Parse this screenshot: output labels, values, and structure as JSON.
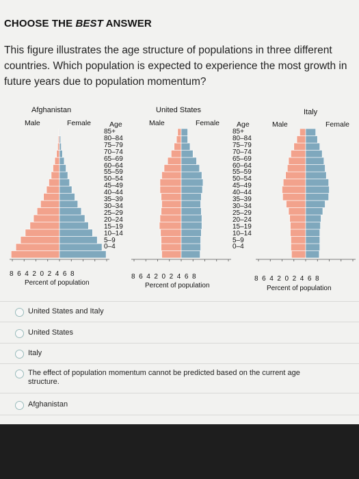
{
  "header": {
    "title_plain": "CHOOSE THE ",
    "title_italic": "BEST",
    "title_end": " ANSWER"
  },
  "question": "This figure illustrates the age structure of populations in three different countries. Which population is expected to experience the most growth in future years due to population momentum?",
  "figure": {
    "colors": {
      "male": "#f2a28c",
      "female": "#7fa8bd"
    },
    "age_header": "Age",
    "age_groups": [
      "85+",
      "80–84",
      "75–79",
      "70–74",
      "65–69",
      "60–64",
      "55–59",
      "50–54",
      "45–49",
      "40–44",
      "35–39",
      "30–34",
      "25–29",
      "20–24",
      "15–19",
      "10–14",
      "5–9",
      "0–4"
    ],
    "x_ticks": "8  6  4  2  0  2  4  6  8",
    "countries": [
      {
        "name": "Afghanistan",
        "male_label": "Male",
        "female_label": "Female",
        "x_label": "Percent of population"
      },
      {
        "name": "United States",
        "male_label": "Male",
        "female_label": "Female",
        "x_label": "Percent of population"
      },
      {
        "name": "Italy",
        "male_label": "Male",
        "female_label": "Female",
        "x_label": "Percent of population"
      }
    ]
  },
  "chart_data": [
    {
      "type": "bar",
      "title": "Afghanistan",
      "xlabel": "Percent of population",
      "categories": [
        "0–4",
        "5–9",
        "10–14",
        "15–19",
        "20–24",
        "25–29",
        "30–34",
        "35–39",
        "40–44",
        "45–49",
        "50–54",
        "55–59",
        "60–64",
        "65–69",
        "70–74",
        "75–79",
        "80–84",
        "85+"
      ],
      "series": [
        {
          "name": "Male",
          "values": [
            8.2,
            7.4,
            6.6,
            5.8,
            5.0,
            4.4,
            3.8,
            3.2,
            2.7,
            2.2,
            1.8,
            1.4,
            1.1,
            0.8,
            0.5,
            0.3,
            0.2,
            0.1
          ]
        },
        {
          "name": "Female",
          "values": [
            7.9,
            7.2,
            6.4,
            5.6,
            4.9,
            4.3,
            3.7,
            3.1,
            2.6,
            2.1,
            1.7,
            1.4,
            1.1,
            0.8,
            0.5,
            0.3,
            0.2,
            0.1
          ]
        }
      ],
      "xlim": [
        -8,
        8
      ]
    },
    {
      "type": "bar",
      "title": "United States",
      "xlabel": "Percent of population",
      "categories": [
        "0–4",
        "5–9",
        "10–14",
        "15–19",
        "20–24",
        "25–29",
        "30–34",
        "35–39",
        "40–44",
        "45–49",
        "50–54",
        "55–59",
        "60–64",
        "65–69",
        "70–74",
        "75–79",
        "80–84",
        "85+"
      ],
      "series": [
        {
          "name": "Male",
          "values": [
            3.3,
            3.4,
            3.4,
            3.5,
            3.7,
            3.6,
            3.4,
            3.3,
            3.4,
            3.6,
            3.6,
            3.3,
            2.9,
            2.3,
            1.7,
            1.2,
            0.8,
            0.6
          ]
        },
        {
          "name": "Female",
          "values": [
            3.2,
            3.3,
            3.3,
            3.4,
            3.5,
            3.5,
            3.4,
            3.3,
            3.4,
            3.6,
            3.7,
            3.5,
            3.1,
            2.6,
            2.0,
            1.5,
            1.1,
            1.1
          ]
        }
      ],
      "xlim": [
        -8,
        8
      ]
    },
    {
      "type": "bar",
      "title": "Italy",
      "xlabel": "Percent of population",
      "categories": [
        "0–4",
        "5–9",
        "10–14",
        "15–19",
        "20–24",
        "25–29",
        "30–34",
        "35–39",
        "40–44",
        "45–49",
        "50–54",
        "55–59",
        "60–64",
        "65–69",
        "70–74",
        "75–79",
        "80–84",
        "85+"
      ],
      "series": [
        {
          "name": "Male",
          "values": [
            2.4,
            2.5,
            2.5,
            2.6,
            2.6,
            2.7,
            2.9,
            3.3,
            3.9,
            4.0,
            3.8,
            3.4,
            3.1,
            2.9,
            2.5,
            2.0,
            1.5,
            1.0
          ]
        },
        {
          "name": "Female",
          "values": [
            2.3,
            2.4,
            2.4,
            2.4,
            2.5,
            2.6,
            2.9,
            3.3,
            3.9,
            4.0,
            3.9,
            3.5,
            3.3,
            3.1,
            2.8,
            2.4,
            2.0,
            1.7
          ]
        }
      ],
      "xlim": [
        -8,
        8
      ]
    }
  ],
  "options": [
    {
      "label": "United States and Italy"
    },
    {
      "label": "United States"
    },
    {
      "label": "Italy"
    },
    {
      "label": "The effect of population momentum cannot be predicted based on the current age structure."
    },
    {
      "label": "Afghanistan"
    }
  ]
}
